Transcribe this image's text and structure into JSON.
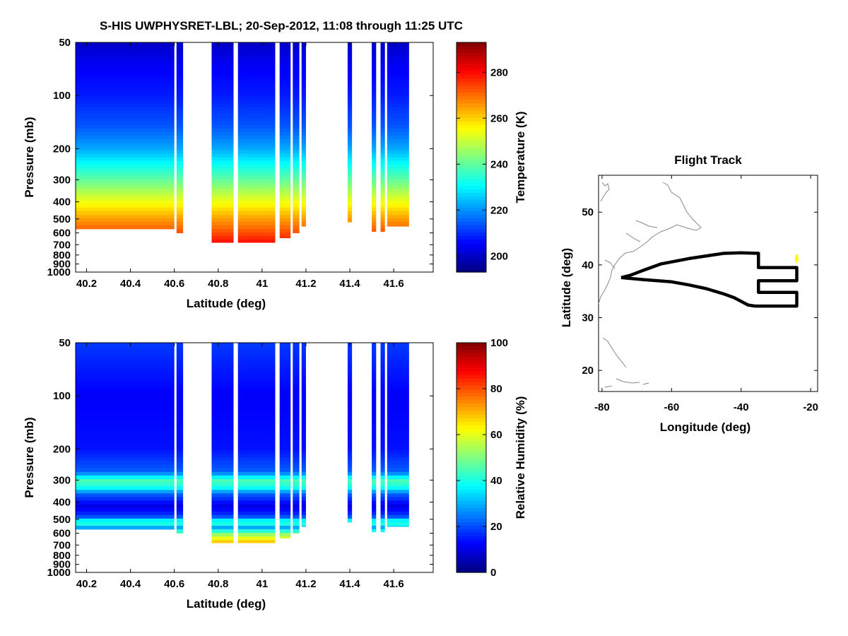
{
  "title": "S-HIS UWPHYSRET-LBL;   20-Sep-2012, 11:08 through 11:25 UTC",
  "chart_data": [
    {
      "type": "heatmap",
      "name": "temperature",
      "xlabel": "Latitude (deg)",
      "ylabel": "Pressure (mb)",
      "xlim": [
        40.15,
        41.78
      ],
      "ylim": [
        50,
        1000
      ],
      "yscale": "log-reversed",
      "xticks": [
        "40.2",
        "40.4",
        "40.6",
        "40.8",
        "41",
        "41.2",
        "41.4",
        "41.6"
      ],
      "xtick_values": [
        40.2,
        40.4,
        40.6,
        40.8,
        41.0,
        41.2,
        41.4,
        41.6
      ],
      "yticks": [
        "50",
        "100",
        "200",
        "300",
        "400",
        "500",
        "600",
        "700",
        "800",
        "900",
        "1000"
      ],
      "ytick_values": [
        50,
        100,
        200,
        300,
        400,
        500,
        600,
        700,
        800,
        900,
        1000
      ],
      "colorbar": {
        "label": "Temperature (K)",
        "range": [
          193,
          293
        ],
        "ticks": [
          "280",
          "260",
          "240",
          "220",
          "200"
        ],
        "tick_values": [
          280,
          260,
          240,
          220,
          200
        ]
      },
      "profile": [
        [
          50,
          200
        ],
        [
          70,
          205
        ],
        [
          100,
          208
        ],
        [
          150,
          214
        ],
        [
          200,
          222
        ],
        [
          250,
          232
        ],
        [
          300,
          240
        ],
        [
          400,
          254
        ],
        [
          500,
          265
        ],
        [
          600,
          273
        ],
        [
          700,
          281
        ],
        [
          800,
          286
        ],
        [
          1000,
          292
        ]
      ],
      "data_segments": [
        {
          "lat_from": 40.15,
          "lat_to": 40.6,
          "bottom_pressure": 570
        },
        {
          "lat_from": 40.61,
          "lat_to": 40.64,
          "bottom_pressure": 600
        },
        {
          "lat_from": 40.77,
          "lat_to": 40.87,
          "bottom_pressure": 680
        },
        {
          "lat_from": 40.89,
          "lat_to": 41.06,
          "bottom_pressure": 680
        },
        {
          "lat_from": 41.08,
          "lat_to": 41.13,
          "bottom_pressure": 640
        },
        {
          "lat_from": 41.14,
          "lat_to": 41.17,
          "bottom_pressure": 600
        },
        {
          "lat_from": 41.18,
          "lat_to": 41.2,
          "bottom_pressure": 550
        },
        {
          "lat_from": 41.39,
          "lat_to": 41.41,
          "bottom_pressure": 520
        },
        {
          "lat_from": 41.5,
          "lat_to": 41.52,
          "bottom_pressure": 590
        },
        {
          "lat_from": 41.54,
          "lat_to": 41.56,
          "bottom_pressure": 590
        },
        {
          "lat_from": 41.57,
          "lat_to": 41.67,
          "bottom_pressure": 550
        }
      ]
    },
    {
      "type": "heatmap",
      "name": "relative_humidity",
      "xlabel": "Latitude (deg)",
      "ylabel": "Pressure (mb)",
      "xlim": [
        40.15,
        41.78
      ],
      "ylim": [
        50,
        1000
      ],
      "yscale": "log-reversed",
      "xticks": [
        "40.2",
        "40.4",
        "40.6",
        "40.8",
        "41",
        "41.2",
        "41.4",
        "41.6"
      ],
      "xtick_values": [
        40.2,
        40.4,
        40.6,
        40.8,
        41.0,
        41.2,
        41.4,
        41.6
      ],
      "yticks": [
        "50",
        "100",
        "200",
        "300",
        "400",
        "500",
        "600",
        "700",
        "800",
        "900",
        "1000"
      ],
      "ytick_values": [
        50,
        100,
        200,
        300,
        400,
        500,
        600,
        700,
        800,
        900,
        1000
      ],
      "colorbar": {
        "label": "Relative Humidity (%)",
        "range": [
          0,
          100
        ],
        "ticks": [
          "100",
          "80",
          "60",
          "40",
          "20",
          "0"
        ],
        "tick_values": [
          100,
          80,
          60,
          40,
          20,
          0
        ]
      },
      "profile": [
        [
          50,
          18
        ],
        [
          100,
          12
        ],
        [
          200,
          14
        ],
        [
          270,
          22
        ],
        [
          300,
          45
        ],
        [
          330,
          40
        ],
        [
          360,
          22
        ],
        [
          420,
          10
        ],
        [
          480,
          18
        ],
        [
          520,
          45
        ],
        [
          560,
          28
        ],
        [
          600,
          50
        ],
        [
          700,
          75
        ],
        [
          800,
          90
        ],
        [
          1000,
          95
        ]
      ],
      "data_segments": [
        {
          "lat_from": 40.15,
          "lat_to": 40.6,
          "bottom_pressure": 570
        },
        {
          "lat_from": 40.61,
          "lat_to": 40.64,
          "bottom_pressure": 600
        },
        {
          "lat_from": 40.77,
          "lat_to": 40.87,
          "bottom_pressure": 680
        },
        {
          "lat_from": 40.89,
          "lat_to": 41.06,
          "bottom_pressure": 680
        },
        {
          "lat_from": 41.08,
          "lat_to": 41.13,
          "bottom_pressure": 640
        },
        {
          "lat_from": 41.14,
          "lat_to": 41.17,
          "bottom_pressure": 600
        },
        {
          "lat_from": 41.18,
          "lat_to": 41.2,
          "bottom_pressure": 550
        },
        {
          "lat_from": 41.39,
          "lat_to": 41.41,
          "bottom_pressure": 520
        },
        {
          "lat_from": 41.5,
          "lat_to": 41.52,
          "bottom_pressure": 590
        },
        {
          "lat_from": 41.54,
          "lat_to": 41.56,
          "bottom_pressure": 590
        },
        {
          "lat_from": 41.57,
          "lat_to": 41.67,
          "bottom_pressure": 550
        }
      ]
    },
    {
      "type": "line",
      "name": "flight_track",
      "title": "Flight Track",
      "xlabel": "Longitude (deg)",
      "ylabel": "Latitude (deg)",
      "xlim": [
        -81,
        -18
      ],
      "ylim": [
        16,
        57
      ],
      "xticks": [
        "-80",
        "-60",
        "-40",
        "-20"
      ],
      "xtick_values": [
        -80,
        -60,
        -40,
        -20
      ],
      "yticks": [
        "50",
        "40",
        "30",
        "20"
      ],
      "ytick_values": [
        50,
        40,
        30,
        20
      ],
      "series": [
        {
          "name": "track",
          "color": "#000000",
          "points": [
            [
              -74.5,
              37.6
            ],
            [
              -73,
              37.5
            ],
            [
              -68,
              37.2
            ],
            [
              -60,
              36.8
            ],
            [
              -55,
              36.2
            ],
            [
              -50,
              35.5
            ],
            [
              -45,
              34.5
            ],
            [
              -42,
              33.8
            ],
            [
              -38,
              32.4
            ],
            [
              -36,
              32.2
            ],
            [
              -24,
              32.2
            ],
            [
              -24,
              34.8
            ],
            [
              -35,
              34.8
            ],
            [
              -35,
              37.0
            ],
            [
              -24,
              37.0
            ],
            [
              -24,
              39.5
            ],
            [
              -35,
              39.5
            ],
            [
              -35,
              42.2
            ],
            [
              -40,
              42.3
            ],
            [
              -45,
              42.2
            ],
            [
              -55,
              41.2
            ],
            [
              -63,
              40.2
            ],
            [
              -68,
              39.0
            ],
            [
              -72,
              38.0
            ],
            [
              -74.5,
              37.6
            ]
          ]
        },
        {
          "name": "current position",
          "color": "#ffff00",
          "points": [
            [
              -24,
              41.2
            ]
          ]
        }
      ]
    }
  ]
}
